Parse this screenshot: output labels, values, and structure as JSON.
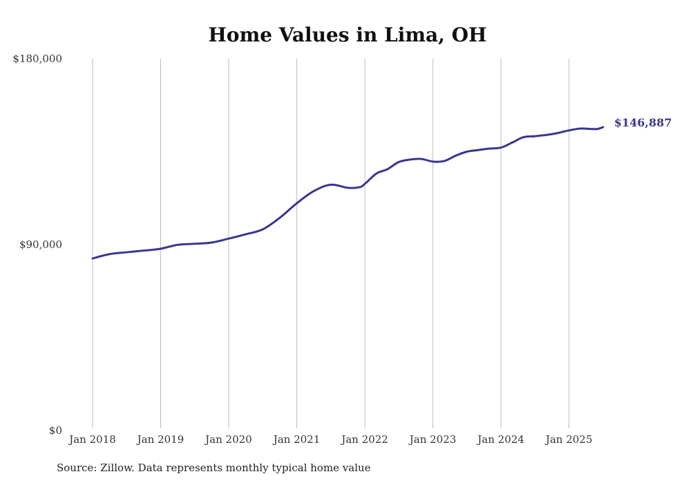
{
  "chart_data": {
    "type": "line",
    "title": "Home Values in Lima, OH",
    "xlabel": "",
    "ylabel": "",
    "ylim": [
      0,
      180000
    ],
    "y_ticks": [
      {
        "value": 0,
        "label": "$0"
      },
      {
        "value": 90000,
        "label": "$90,000"
      },
      {
        "value": 180000,
        "label": "$180,000"
      }
    ],
    "x_ticks": [
      {
        "value": 2018.0,
        "label": "Jan 2018"
      },
      {
        "value": 2019.0,
        "label": "Jan 2019"
      },
      {
        "value": 2020.0,
        "label": "Jan 2020"
      },
      {
        "value": 2021.0,
        "label": "Jan 2021"
      },
      {
        "value": 2022.0,
        "label": "Jan 2022"
      },
      {
        "value": 2023.0,
        "label": "Jan 2023"
      },
      {
        "value": 2024.0,
        "label": "Jan 2024"
      },
      {
        "value": 2025.0,
        "label": "Jan 2025"
      }
    ],
    "xlim": [
      2018.0,
      2025.5
    ],
    "grid": "vertical",
    "line_color": "#3a3590",
    "series": [
      {
        "points": [
          [
            2018.0,
            83300
          ],
          [
            2018.25,
            85400
          ],
          [
            2018.5,
            86300
          ],
          [
            2018.75,
            87100
          ],
          [
            2019.0,
            88000
          ],
          [
            2019.25,
            89900
          ],
          [
            2019.5,
            90400
          ],
          [
            2019.75,
            91000
          ],
          [
            2020.0,
            92900
          ],
          [
            2020.25,
            95000
          ],
          [
            2020.5,
            97400
          ],
          [
            2020.75,
            103000
          ],
          [
            2021.0,
            110000
          ],
          [
            2021.25,
            115900
          ],
          [
            2021.5,
            119000
          ],
          [
            2021.75,
            117500
          ],
          [
            2021.92,
            117800
          ],
          [
            2022.0,
            119400
          ],
          [
            2022.17,
            124400
          ],
          [
            2022.33,
            126500
          ],
          [
            2022.5,
            130000
          ],
          [
            2022.67,
            131200
          ],
          [
            2022.83,
            131500
          ],
          [
            2023.0,
            130200
          ],
          [
            2023.17,
            130500
          ],
          [
            2023.33,
            133000
          ],
          [
            2023.5,
            135000
          ],
          [
            2023.67,
            135800
          ],
          [
            2023.83,
            136500
          ],
          [
            2024.0,
            137000
          ],
          [
            2024.17,
            139500
          ],
          [
            2024.33,
            142000
          ],
          [
            2024.5,
            142500
          ],
          [
            2024.67,
            143100
          ],
          [
            2024.83,
            144000
          ],
          [
            2025.0,
            145300
          ],
          [
            2025.17,
            146200
          ],
          [
            2025.33,
            146000
          ],
          [
            2025.42,
            146000
          ],
          [
            2025.5,
            146887
          ]
        ],
        "end_label": "$146,887"
      }
    ]
  },
  "source_note": "Source: Zillow. Data represents monthly typical home value"
}
